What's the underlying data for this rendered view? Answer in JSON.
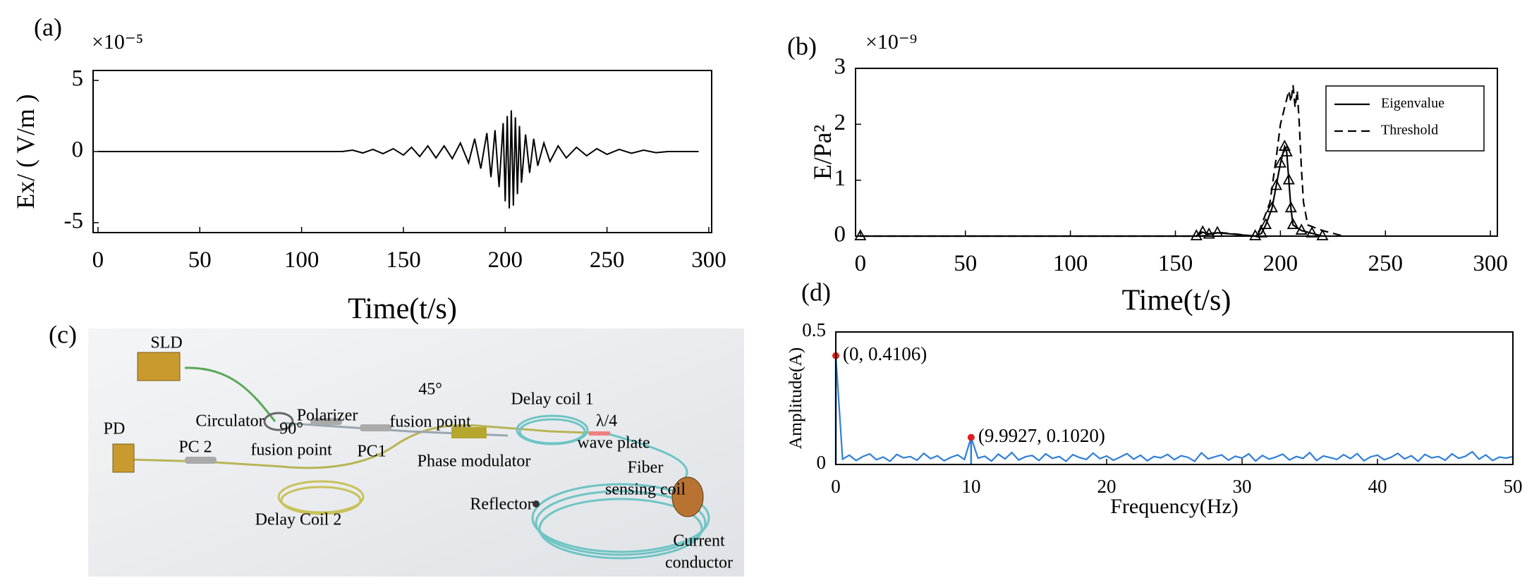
{
  "chart_data": [
    {
      "type": "line",
      "panel": "(a)",
      "y_multiplier": "×10⁻⁵",
      "ylabel": "Ex/ ( V/m )",
      "xlabel": "Time(t/s)",
      "xlim": [
        -2.4,
        301.4
      ],
      "xticks": [
        0,
        50,
        100,
        150,
        200,
        250,
        300
      ],
      "ylim": [
        -5.7,
        5.7
      ],
      "yticks": [
        5,
        0,
        -5
      ],
      "grid": false,
      "color": "#000000",
      "x": [
        0,
        120,
        125,
        130,
        135,
        140,
        145,
        150,
        154,
        158,
        162,
        166,
        170,
        174,
        178,
        182,
        185,
        188,
        191,
        193,
        195,
        197,
        199,
        200,
        201,
        202,
        203,
        204,
        205,
        206,
        207,
        208,
        210,
        212,
        214,
        216,
        219,
        222,
        226,
        230,
        235,
        240,
        245,
        250,
        256,
        262,
        268,
        274,
        280,
        295
      ],
      "values": [
        0,
        0,
        0.1,
        -0.1,
        0.15,
        -0.15,
        0.2,
        -0.25,
        0.3,
        -0.35,
        0.4,
        -0.45,
        0.4,
        -0.5,
        0.6,
        -0.8,
        0.9,
        -1.2,
        1.3,
        -1.8,
        1.5,
        -2.5,
        2,
        -3.5,
        2.5,
        -4,
        2.9,
        -3.8,
        2.4,
        -3,
        1.8,
        -2.2,
        1.2,
        -1.5,
        0.9,
        -1,
        0.6,
        -0.7,
        0.4,
        -0.45,
        0.3,
        -0.3,
        0.2,
        -0.2,
        0.15,
        -0.12,
        0.1,
        -0.08,
        0,
        0
      ]
    },
    {
      "type": "line",
      "panel": "(b)",
      "y_multiplier": "×10⁻⁹",
      "ylabel": "E/Pa²",
      "xlabel": "Time(t/s)",
      "xlim": [
        -2.3,
        303.3
      ],
      "xticks": [
        0,
        50,
        100,
        150,
        200,
        250,
        300
      ],
      "ylim": [
        0,
        3
      ],
      "yticks": [
        0,
        1,
        2,
        3
      ],
      "grid": false,
      "legend": "upper right",
      "series": [
        {
          "name": "Eigenvalue",
          "color": "#000000",
          "dash": false,
          "marker": "triangle",
          "x": [
            0,
            160,
            163,
            166,
            170,
            188,
            191,
            193,
            196,
            198,
            200,
            202,
            203,
            204,
            205,
            206,
            210,
            215,
            220
          ],
          "values": [
            0,
            0,
            0.07,
            0.03,
            0.06,
            0,
            0.05,
            0.2,
            0.5,
            0.9,
            1.3,
            1.6,
            1.5,
            1.0,
            0.5,
            0.2,
            0.1,
            0.05,
            0
          ]
        },
        {
          "name": "Threshold",
          "color": "#000000",
          "dash": true,
          "marker": "none",
          "x": [
            0,
            160,
            162,
            166,
            170,
            188,
            190,
            195,
            198,
            200,
            202,
            204,
            205,
            206,
            207,
            208,
            209,
            210,
            211,
            213,
            220,
            230
          ],
          "values": [
            0,
            0,
            0.08,
            0.04,
            0.07,
            0,
            0.1,
            0.6,
            1.4,
            2.0,
            2.3,
            2.6,
            2.4,
            2.7,
            2.3,
            2.6,
            2.0,
            1.2,
            0.6,
            0.2,
            0.1,
            0
          ]
        }
      ]
    },
    {
      "type": "line",
      "panel": "(d)",
      "ylabel": "Amplitude(A)",
      "xlabel": "Frequency(Hz)",
      "xlim": [
        0,
        50
      ],
      "xticks": [
        0,
        10,
        20,
        30,
        40,
        50
      ],
      "ylim": [
        0,
        0.5
      ],
      "yticks": [
        0,
        0.5
      ],
      "grid": false,
      "color": "#2f7fd8",
      "annotation_color": "#e02020",
      "annotations": [
        {
          "text": "(0, 0.4106)",
          "x": 0,
          "y": 0.4106
        },
        {
          "text": "(9.9927, 0.1020)",
          "x": 9.9927,
          "y": 0.102
        }
      ],
      "x": [
        0,
        0.5,
        1,
        1.5,
        2,
        2.5,
        3,
        3.5,
        4,
        4.5,
        5,
        5.5,
        6,
        6.5,
        7,
        7.5,
        8,
        8.5,
        9,
        9.5,
        9.9927,
        10.5,
        11,
        11.5,
        12,
        12.5,
        13,
        13.5,
        14,
        14.5,
        15,
        15.5,
        16,
        16.5,
        17,
        17.5,
        18,
        18.5,
        19,
        19.5,
        20,
        20.5,
        21,
        21.5,
        22,
        22.5,
        23,
        23.5,
        24,
        24.5,
        25,
        25.5,
        26,
        26.5,
        27,
        27.5,
        28,
        28.5,
        29,
        29.5,
        30,
        30.5,
        31,
        31.5,
        32,
        32.5,
        33,
        33.5,
        34,
        34.5,
        35,
        35.5,
        36,
        36.5,
        37,
        37.5,
        38,
        38.5,
        39,
        39.5,
        40,
        40.5,
        41,
        41.5,
        42,
        42.5,
        43,
        43.5,
        44,
        44.5,
        45,
        45.5,
        46,
        46.5,
        47,
        47.5,
        48,
        48.5,
        49,
        49.5,
        50
      ],
      "values": [
        0.4106,
        0.02,
        0.035,
        0.015,
        0.03,
        0.04,
        0.018,
        0.028,
        0.012,
        0.038,
        0.025,
        0.03,
        0.016,
        0.042,
        0.022,
        0.033,
        0.014,
        0.027,
        0.036,
        0.019,
        0.102,
        0.024,
        0.031,
        0.013,
        0.039,
        0.021,
        0.045,
        0.017,
        0.029,
        0.034,
        0.015,
        0.04,
        0.023,
        0.03,
        0.012,
        0.037,
        0.026,
        0.019,
        0.043,
        0.022,
        0.032,
        0.016,
        0.028,
        0.041,
        0.02,
        0.035,
        0.014,
        0.03,
        0.025,
        0.038,
        0.018,
        0.033,
        0.027,
        0.012,
        0.044,
        0.021,
        0.029,
        0.036,
        0.016,
        0.031,
        0.024,
        0.04,
        0.013,
        0.034,
        0.02,
        0.028,
        0.039,
        0.017,
        0.03,
        0.023,
        0.045,
        0.015,
        0.032,
        0.026,
        0.019,
        0.037,
        0.022,
        0.041,
        0.014,
        0.029,
        0.035,
        0.018,
        0.027,
        0.042,
        0.021,
        0.033,
        0.012,
        0.038,
        0.025,
        0.03,
        0.016,
        0.04,
        0.023,
        0.031,
        0.048,
        0.02,
        0.036,
        0.015,
        0.028,
        0.024,
        0.03
      ]
    }
  ],
  "diagram": {
    "panel": "(c)",
    "labels": [
      "SLD",
      "Circulator",
      "Polarizer",
      "45°",
      "fusion point",
      "Delay coil 1",
      "PD",
      "PC 2",
      "90°",
      "fusion point",
      "PC1",
      "Phase modulator",
      "λ/4",
      "wave plate",
      "Fiber",
      "sensing coil",
      "Reflector",
      "Delay Coil 2",
      "Current",
      "conductor"
    ]
  }
}
